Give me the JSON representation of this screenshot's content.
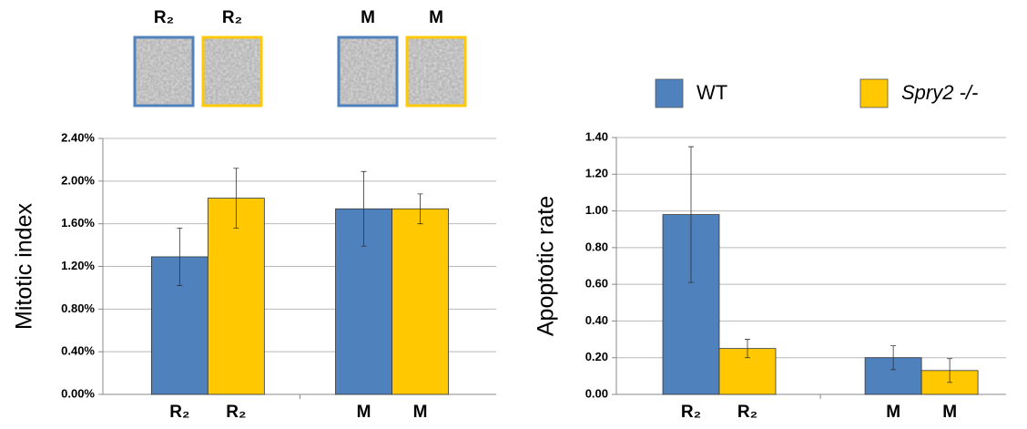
{
  "thumbnails": [
    "R₂",
    "R₂",
    "M",
    "M"
  ],
  "chart_data": [
    {
      "type": "bar",
      "y_label": "Mitotic index",
      "categories": [
        "R₂",
        "M"
      ],
      "series": [
        {
          "name": "WT",
          "color": "#4f81bd",
          "values": [
            1.29,
            1.74
          ],
          "errors": [
            0.27,
            0.35
          ]
        },
        {
          "name": "Spry2 -/-",
          "color": "#ffc800",
          "values": [
            1.84,
            1.74
          ],
          "errors": [
            0.28,
            0.14
          ]
        }
      ],
      "ylim": [
        0,
        2.4
      ],
      "yticks": [
        {
          "value": 0,
          "label": "0.00%"
        },
        {
          "value": 0.4,
          "label": "0.40%"
        },
        {
          "value": 0.8,
          "label": "0.80%"
        },
        {
          "value": 1.2,
          "label": "1.20%"
        },
        {
          "value": 1.6,
          "label": "1.60%"
        },
        {
          "value": 2.0,
          "label": "2.00%"
        },
        {
          "value": 2.4,
          "label": "2.40%"
        }
      ],
      "grid": true
    },
    {
      "type": "bar",
      "y_label": "Apoptotic rate",
      "categories": [
        "R₂",
        "M"
      ],
      "series": [
        {
          "name": "WT",
          "color": "#4f81bd",
          "values": [
            0.98,
            0.2
          ],
          "errors": [
            0.37,
            0.065
          ]
        },
        {
          "name": "Spry2 -/-",
          "color": "#ffc800",
          "values": [
            0.25,
            0.13
          ],
          "errors": [
            0.05,
            0.065
          ]
        }
      ],
      "ylim": [
        0,
        1.4
      ],
      "yticks": [
        {
          "value": 0,
          "label": "0.00"
        },
        {
          "value": 0.2,
          "label": "0.20"
        },
        {
          "value": 0.4,
          "label": "0.40"
        },
        {
          "value": 0.6,
          "label": "0.60"
        },
        {
          "value": 0.8,
          "label": "0.80"
        },
        {
          "value": 1.0,
          "label": "1.00"
        },
        {
          "value": 1.2,
          "label": "1.20"
        },
        {
          "value": 1.4,
          "label": "1.40"
        }
      ],
      "grid": true,
      "legend": "top"
    }
  ]
}
